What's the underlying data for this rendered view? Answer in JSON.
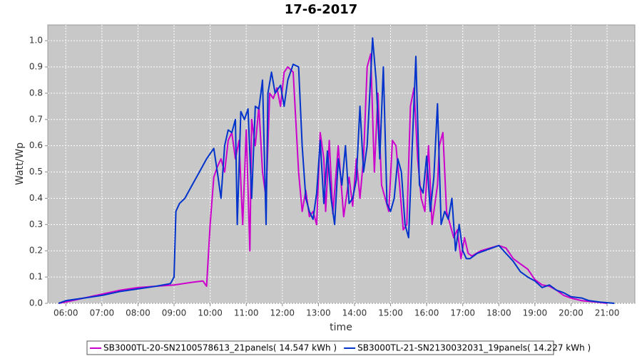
{
  "chart_data": {
    "type": "line",
    "title": "17-6-2017",
    "x_label": "time",
    "y_label": "Watt/Wp",
    "xlim": [
      5.5,
      21.77
    ],
    "ylim": [
      0,
      1.06
    ],
    "grid": true,
    "legend": "bottom",
    "xticks": [
      {
        "value": 6,
        "label": "06:00"
      },
      {
        "value": 7,
        "label": "07:00"
      },
      {
        "value": 8,
        "label": "08:00"
      },
      {
        "value": 9,
        "label": "09:00"
      },
      {
        "value": 10,
        "label": "10:00"
      },
      {
        "value": 11,
        "label": "11:00"
      },
      {
        "value": 12,
        "label": "12:00"
      },
      {
        "value": 13,
        "label": "13:00"
      },
      {
        "value": 14,
        "label": "14:00"
      },
      {
        "value": 15,
        "label": "15:00"
      },
      {
        "value": 16,
        "label": "16:00"
      },
      {
        "value": 17,
        "label": "17:00"
      },
      {
        "value": 18,
        "label": "18:00"
      },
      {
        "value": 19,
        "label": "19:00"
      },
      {
        "value": 20,
        "label": "20:00"
      },
      {
        "value": 21,
        "label": "21:00"
      }
    ],
    "yticks": [
      {
        "value": 0,
        "label": "0.0"
      },
      {
        "value": 0.1,
        "label": "0.1"
      },
      {
        "value": 0.2,
        "label": "0.2"
      },
      {
        "value": 0.3,
        "label": "0.3"
      },
      {
        "value": 0.4,
        "label": "0.4"
      },
      {
        "value": 0.5,
        "label": "0.5"
      },
      {
        "value": 0.6,
        "label": "0.6"
      },
      {
        "value": 0.7,
        "label": "0.7"
      },
      {
        "value": 0.8,
        "label": "0.8"
      },
      {
        "value": 0.9,
        "label": "0.9"
      },
      {
        "value": 1,
        "label": "1.0"
      }
    ],
    "series": [
      {
        "name": "SB3000TL-20-SN2100578613_21panels( 14.547 kWh )",
        "color": "#cc00cc",
        "x": [
          5.8,
          6.0,
          6.5,
          7,
          7.5,
          8,
          8.5,
          9,
          9.5,
          9.8,
          9.9,
          10.0,
          10.1,
          10.2,
          10.3,
          10.4,
          10.5,
          10.6,
          10.7,
          10.8,
          10.9,
          11.0,
          11.1,
          11.15,
          11.25,
          11.35,
          11.45,
          11.55,
          11.65,
          11.75,
          11.85,
          11.95,
          12.05,
          12.15,
          12.3,
          12.45,
          12.55,
          12.65,
          12.75,
          12.85,
          12.95,
          13.05,
          13.15,
          13.2,
          13.3,
          13.4,
          13.55,
          13.7,
          13.85,
          13.95,
          14.05,
          14.15,
          14.25,
          14.35,
          14.45,
          14.55,
          14.65,
          14.75,
          14.85,
          14.95,
          15.05,
          15.15,
          15.25,
          15.35,
          15.45,
          15.55,
          15.65,
          15.75,
          15.85,
          15.95,
          16.05,
          16.15,
          16.3,
          16.35,
          16.45,
          16.55,
          16.65,
          16.75,
          16.85,
          16.95,
          17.05,
          17.15,
          17.25,
          17.5,
          17.75,
          18.0,
          18.2,
          18.4,
          18.6,
          18.8,
          19.0,
          19.2,
          19.4,
          19.6,
          19.8,
          20.0,
          20.3,
          20.7,
          21.0
        ],
        "values": [
          0,
          0.005,
          0.02,
          0.035,
          0.05,
          0.06,
          0.065,
          0.07,
          0.08,
          0.085,
          0.065,
          0.3,
          0.48,
          0.52,
          0.55,
          0.5,
          0.62,
          0.65,
          0.55,
          0.62,
          0.3,
          0.66,
          0.2,
          0.7,
          0.6,
          0.75,
          0.5,
          0.4,
          0.8,
          0.78,
          0.82,
          0.75,
          0.88,
          0.9,
          0.88,
          0.5,
          0.35,
          0.43,
          0.33,
          0.35,
          0.3,
          0.65,
          0.55,
          0.35,
          0.62,
          0.34,
          0.6,
          0.33,
          0.48,
          0.37,
          0.55,
          0.4,
          0.55,
          0.9,
          0.95,
          0.5,
          0.8,
          0.45,
          0.4,
          0.35,
          0.62,
          0.6,
          0.45,
          0.28,
          0.3,
          0.75,
          0.82,
          0.55,
          0.4,
          0.35,
          0.6,
          0.3,
          0.45,
          0.6,
          0.65,
          0.35,
          0.3,
          0.25,
          0.28,
          0.17,
          0.25,
          0.19,
          0.18,
          0.2,
          0.21,
          0.22,
          0.21,
          0.17,
          0.15,
          0.13,
          0.09,
          0.07,
          0.065,
          0.05,
          0.03,
          0.02,
          0.01,
          0.005,
          0
        ]
      },
      {
        "name": "SB3000TL-21-SN2130032031_19panels( 14.227 kWh )",
        "color": "#0033cc",
        "x": [
          5.8,
          6.0,
          6.5,
          7,
          7.5,
          8,
          8.5,
          8.9,
          9.0,
          9.05,
          9.15,
          9.3,
          9.5,
          9.7,
          9.9,
          10.1,
          10.2,
          10.3,
          10.4,
          10.5,
          10.6,
          10.7,
          10.75,
          10.85,
          10.95,
          11.05,
          11.15,
          11.25,
          11.35,
          11.45,
          11.55,
          11.6,
          11.7,
          11.8,
          11.95,
          12.05,
          12.15,
          12.3,
          12.45,
          12.55,
          12.65,
          12.75,
          12.85,
          12.95,
          13.05,
          13.15,
          13.25,
          13.35,
          13.45,
          13.55,
          13.65,
          13.75,
          13.85,
          13.95,
          14.05,
          14.15,
          14.25,
          14.35,
          14.5,
          14.6,
          14.7,
          14.8,
          14.9,
          15.0,
          15.1,
          15.2,
          15.3,
          15.4,
          15.5,
          15.6,
          15.7,
          15.8,
          15.9,
          16.0,
          16.1,
          16.2,
          16.3,
          16.4,
          16.5,
          16.6,
          16.7,
          16.8,
          16.9,
          17.0,
          17.1,
          17.2,
          17.4,
          17.6,
          17.8,
          18.0,
          18.2,
          18.4,
          18.6,
          18.8,
          19.0,
          19.2,
          19.4,
          19.6,
          19.8,
          20.0,
          20.3,
          20.5,
          20.8,
          21.2
        ],
        "values": [
          0,
          0.01,
          0.02,
          0.03,
          0.045,
          0.055,
          0.065,
          0.075,
          0.1,
          0.35,
          0.38,
          0.4,
          0.45,
          0.5,
          0.55,
          0.59,
          0.5,
          0.4,
          0.6,
          0.66,
          0.65,
          0.7,
          0.3,
          0.73,
          0.7,
          0.74,
          0.4,
          0.75,
          0.74,
          0.85,
          0.3,
          0.8,
          0.88,
          0.8,
          0.83,
          0.75,
          0.85,
          0.91,
          0.9,
          0.6,
          0.4,
          0.35,
          0.32,
          0.42,
          0.62,
          0.38,
          0.58,
          0.4,
          0.3,
          0.55,
          0.45,
          0.6,
          0.38,
          0.4,
          0.47,
          0.75,
          0.5,
          0.6,
          1.01,
          0.85,
          0.55,
          0.9,
          0.38,
          0.35,
          0.4,
          0.55,
          0.5,
          0.3,
          0.25,
          0.6,
          0.94,
          0.45,
          0.42,
          0.56,
          0.35,
          0.48,
          0.76,
          0.3,
          0.35,
          0.32,
          0.4,
          0.2,
          0.3,
          0.2,
          0.17,
          0.17,
          0.19,
          0.2,
          0.21,
          0.22,
          0.19,
          0.16,
          0.12,
          0.1,
          0.085,
          0.06,
          0.07,
          0.05,
          0.04,
          0.025,
          0.02,
          0.01,
          0.005,
          0
        ]
      }
    ]
  }
}
